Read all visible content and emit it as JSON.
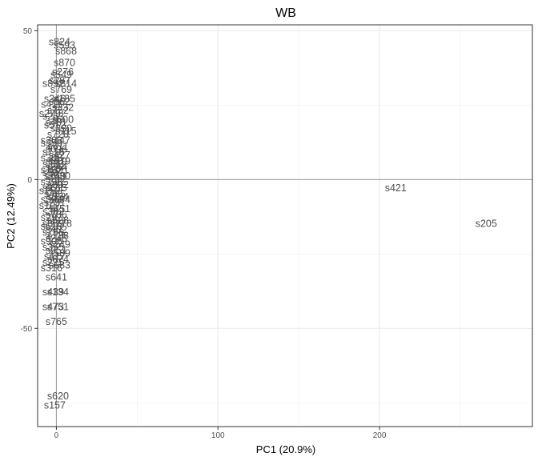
{
  "chart_data": {
    "type": "scatter",
    "title": "WB",
    "xlabel": "PC1 (20.9%)",
    "ylabel": "PC2 (12.49%)",
    "xlim": [
      -11.6,
      294.6
    ],
    "ylim": [
      -83,
      52
    ],
    "xticks": [
      0,
      100,
      200
    ],
    "yticks": [
      -50,
      0,
      50
    ],
    "x_minor": [
      50,
      150,
      250
    ],
    "y_minor": [
      -75,
      -25,
      25
    ],
    "grid": true,
    "reference_lines": {
      "x": 0,
      "y": 0
    },
    "points": [
      {
        "label": "s824",
        "x": 2,
        "y": 46
      },
      {
        "label": "s593",
        "x": 5,
        "y": 45
      },
      {
        "label": "s868",
        "x": 6,
        "y": 43
      },
      {
        "label": "s870",
        "x": 5,
        "y": 39
      },
      {
        "label": "s276",
        "x": 4,
        "y": 36
      },
      {
        "label": "s549",
        "x": 3,
        "y": 35
      },
      {
        "label": "s287",
        "x": 2,
        "y": 33
      },
      {
        "label": "s814",
        "x": 6,
        "y": 32
      },
      {
        "label": "s892",
        "x": -2,
        "y": 32
      },
      {
        "label": "s769",
        "x": 3,
        "y": 30
      },
      {
        "label": "s185",
        "x": 5,
        "y": 27
      },
      {
        "label": "s346",
        "x": -1,
        "y": 27
      },
      {
        "label": "s562",
        "x": 2,
        "y": 26
      },
      {
        "label": "s411",
        "x": -3,
        "y": 25
      },
      {
        "label": "s332",
        "x": 4,
        "y": 24
      },
      {
        "label": "s752",
        "x": 1,
        "y": 23
      },
      {
        "label": "s279",
        "x": -4,
        "y": 22
      },
      {
        "label": "s263",
        "x": -2,
        "y": 21
      },
      {
        "label": "s600",
        "x": 4,
        "y": 20
      },
      {
        "label": "s481",
        "x": 0,
        "y": 19
      },
      {
        "label": "s512",
        "x": -1,
        "y": 18
      },
      {
        "label": "s390",
        "x": 3,
        "y": 17
      },
      {
        "label": "s115",
        "x": 6,
        "y": 16
      },
      {
        "label": "s728",
        "x": 1,
        "y": 15
      },
      {
        "label": "s203",
        "x": -3,
        "y": 13
      },
      {
        "label": "s447",
        "x": 2,
        "y": 13
      },
      {
        "label": "s350",
        "x": -3,
        "y": 12
      },
      {
        "label": "s611",
        "x": 1,
        "y": 11
      },
      {
        "label": "s096",
        "x": 0,
        "y": 10
      },
      {
        "label": "s718",
        "x": -2,
        "y": 9
      },
      {
        "label": "s427",
        "x": 2,
        "y": 8
      },
      {
        "label": "s308",
        "x": -3,
        "y": 7
      },
      {
        "label": "s519",
        "x": 0,
        "y": 6
      },
      {
        "label": "s679",
        "x": 2,
        "y": 6
      },
      {
        "label": "s233",
        "x": -2,
        "y": 5
      },
      {
        "label": "s844",
        "x": 0,
        "y": 4
      },
      {
        "label": "s162",
        "x": -3,
        "y": 3
      },
      {
        "label": "s321",
        "x": 1,
        "y": 3
      },
      {
        "label": "s507",
        "x": -2,
        "y": 2
      },
      {
        "label": "s630",
        "x": 2,
        "y": 1
      },
      {
        "label": "s740",
        "x": -1,
        "y": 1
      },
      {
        "label": "s212",
        "x": 0,
        "y": 0
      },
      {
        "label": "s398",
        "x": -3,
        "y": -1
      },
      {
        "label": "s802",
        "x": 1,
        "y": -2
      },
      {
        "label": "s271",
        "x": -2,
        "y": -3
      },
      {
        "label": "s615",
        "x": 0,
        "y": -3
      },
      {
        "label": "s152",
        "x": -4,
        "y": -4
      },
      {
        "label": "s485",
        "x": -1,
        "y": -5
      },
      {
        "label": "s334",
        "x": 1,
        "y": -6
      },
      {
        "label": "s594",
        "x": -3,
        "y": -7
      },
      {
        "label": "s694",
        "x": 2,
        "y": -7
      },
      {
        "label": "s231",
        "x": -1,
        "y": -8
      },
      {
        "label": "s107",
        "x": -4,
        "y": -9
      },
      {
        "label": "s451",
        "x": 2,
        "y": -10
      },
      {
        "label": "s382",
        "x": -2,
        "y": -11
      },
      {
        "label": "s706",
        "x": 0,
        "y": -12
      },
      {
        "label": "s297",
        "x": -3,
        "y": -13
      },
      {
        "label": "s528",
        "x": 1,
        "y": -14
      },
      {
        "label": "s859",
        "x": -2,
        "y": -15
      },
      {
        "label": "s178",
        "x": 3,
        "y": -15
      },
      {
        "label": "s613",
        "x": -3,
        "y": -16
      },
      {
        "label": "s402",
        "x": 0,
        "y": -17
      },
      {
        "label": "s756",
        "x": -2,
        "y": -18
      },
      {
        "label": "s138",
        "x": 1,
        "y": -19
      },
      {
        "label": "s248",
        "x": 0,
        "y": -20
      },
      {
        "label": "s906",
        "x": -3,
        "y": -21
      },
      {
        "label": "s249",
        "x": 2,
        "y": -22
      },
      {
        "label": "s355",
        "x": -2,
        "y": -23
      },
      {
        "label": "s951",
        "x": 0,
        "y": -24
      },
      {
        "label": "s589",
        "x": 2,
        "y": -25
      },
      {
        "label": "s417",
        "x": -1,
        "y": -26
      },
      {
        "label": "s674",
        "x": 1,
        "y": -27
      },
      {
        "label": "s225",
        "x": -2,
        "y": -28
      },
      {
        "label": "s683",
        "x": 2,
        "y": -29
      },
      {
        "label": "s316",
        "x": -3,
        "y": -30
      },
      {
        "label": "s641",
        "x": 0,
        "y": -33
      },
      {
        "label": "s439",
        "x": -2,
        "y": -38
      },
      {
        "label": "s134",
        "x": 1,
        "y": -38
      },
      {
        "label": "s473",
        "x": -2,
        "y": -43
      },
      {
        "label": "s751",
        "x": 1,
        "y": -43
      },
      {
        "label": "s765",
        "x": 0,
        "y": -48
      },
      {
        "label": "s620",
        "x": 1,
        "y": -73
      },
      {
        "label": "s157",
        "x": -1,
        "y": -76
      },
      {
        "label": "s421",
        "x": 210,
        "y": -3
      },
      {
        "label": "s205",
        "x": 266,
        "y": -15
      }
    ]
  }
}
